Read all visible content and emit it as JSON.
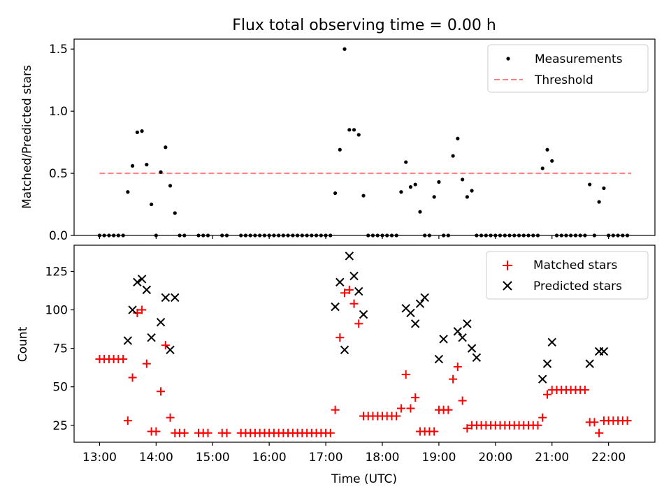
{
  "figure": {
    "title": "Flux total observing time = 0.00 h"
  },
  "chart_data": [
    {
      "type": "scatter",
      "name": "top",
      "ylabel": "Matched/Predicted stars",
      "xlabel": "",
      "xlim": [
        12.55,
        22.82
      ],
      "ylim": [
        0,
        1.58
      ],
      "yticks": [
        0.0,
        0.5,
        1.0,
        1.5
      ],
      "ytick_labels": [
        "0.0",
        "0.5",
        "1.0",
        "1.5"
      ],
      "grid": false,
      "legend_position": "upper right",
      "legend": [
        {
          "label": "Measurements",
          "marker": "dot",
          "color": "#000000"
        },
        {
          "label": "Threshold",
          "marker": "dashed-line",
          "color": "#ff7f7f"
        }
      ],
      "threshold": {
        "value": 0.5,
        "x_start": 13.0,
        "x_end": 22.4,
        "color": "#ff7f7f"
      },
      "series": [
        {
          "name": "Measurements",
          "color": "#000000",
          "x": [
            13.0,
            13.083,
            13.167,
            13.25,
            13.333,
            13.417,
            13.5,
            13.583,
            13.667,
            13.75,
            13.833,
            13.917,
            14.0,
            14.083,
            14.167,
            14.25,
            14.333,
            14.417,
            14.5,
            14.75,
            14.833,
            14.917,
            15.167,
            15.25,
            15.5,
            15.583,
            15.667,
            15.75,
            15.833,
            15.917,
            16.0,
            16.083,
            16.167,
            16.25,
            16.333,
            16.417,
            16.5,
            16.583,
            16.667,
            16.75,
            16.833,
            16.917,
            17.0,
            17.083,
            17.167,
            17.25,
            17.333,
            17.417,
            17.5,
            17.583,
            17.667,
            17.75,
            17.833,
            17.917,
            18.0,
            18.083,
            18.167,
            18.25,
            18.333,
            18.417,
            18.5,
            18.583,
            18.667,
            18.75,
            18.833,
            18.917,
            19.0,
            19.083,
            19.167,
            19.25,
            19.333,
            19.417,
            19.5,
            19.583,
            19.667,
            19.75,
            19.833,
            19.917,
            20.0,
            20.083,
            20.167,
            20.25,
            20.333,
            20.417,
            20.5,
            20.583,
            20.667,
            20.75,
            20.833,
            20.917,
            21.0,
            21.083,
            21.167,
            21.25,
            21.333,
            21.417,
            21.5,
            21.583,
            21.667,
            21.75,
            21.833,
            21.917,
            22.0,
            22.083,
            22.167,
            22.25,
            22.333
          ],
          "y": [
            0.0,
            0.0,
            0.0,
            0.0,
            0.0,
            0.0,
            0.35,
            0.56,
            0.83,
            0.84,
            0.57,
            0.25,
            0.0,
            0.51,
            0.71,
            0.4,
            0.18,
            0.0,
            0.0,
            0.0,
            0.0,
            0.0,
            0.0,
            0.0,
            0.0,
            0.0,
            0.0,
            0.0,
            0.0,
            0.0,
            0.0,
            0.0,
            0.0,
            0.0,
            0.0,
            0.0,
            0.0,
            0.0,
            0.0,
            0.0,
            0.0,
            0.0,
            0.0,
            0.0,
            0.34,
            0.69,
            1.5,
            0.85,
            0.85,
            0.81,
            0.32,
            0.0,
            0.0,
            0.0,
            0.0,
            0.0,
            0.0,
            0.0,
            0.35,
            0.59,
            0.39,
            0.41,
            0.19,
            0.0,
            0.0,
            0.31,
            0.43,
            0.0,
            0.0,
            0.64,
            0.78,
            0.45,
            0.31,
            0.36,
            0.0,
            0.0,
            0.0,
            0.0,
            0.0,
            0.0,
            0.0,
            0.0,
            0.0,
            0.0,
            0.0,
            0.0,
            0.0,
            0.0,
            0.54,
            0.69,
            0.6,
            0.0,
            0.0,
            0.0,
            0.0,
            0.0,
            0.0,
            0.0,
            0.41,
            0.0,
            0.27,
            0.38,
            0.0,
            0.0,
            0.0,
            0.0,
            0.0
          ]
        }
      ]
    },
    {
      "type": "scatter",
      "name": "bottom",
      "ylabel": "Count",
      "xlabel": "Time (UTC)",
      "xlim": [
        12.55,
        22.82
      ],
      "ylim": [
        14,
        142
      ],
      "yticks": [
        25,
        50,
        75,
        100,
        125
      ],
      "ytick_labels": [
        "25",
        "50",
        "75",
        "100",
        "125"
      ],
      "xticks": [
        13,
        14,
        15,
        16,
        17,
        18,
        19,
        20,
        21,
        22
      ],
      "xtick_labels": [
        "13:00",
        "14:00",
        "15:00",
        "16:00",
        "17:00",
        "18:00",
        "19:00",
        "20:00",
        "21:00",
        "22:00"
      ],
      "grid": false,
      "legend_position": "upper right",
      "legend": [
        {
          "label": "Matched stars",
          "marker": "plus",
          "color": "#ff0000"
        },
        {
          "label": "Predicted stars",
          "marker": "cross",
          "color": "#000000"
        }
      ],
      "series": [
        {
          "name": "Matched stars",
          "color": "#ff0000",
          "marker": "plus",
          "x": [
            13.0,
            13.083,
            13.167,
            13.25,
            13.333,
            13.417,
            13.5,
            13.583,
            13.667,
            13.75,
            13.833,
            13.917,
            14.0,
            14.083,
            14.167,
            14.25,
            14.333,
            14.417,
            14.5,
            14.75,
            14.833,
            14.917,
            15.167,
            15.25,
            15.5,
            15.583,
            15.667,
            15.75,
            15.833,
            15.917,
            16.0,
            16.083,
            16.167,
            16.25,
            16.333,
            16.417,
            16.5,
            16.583,
            16.667,
            16.75,
            16.833,
            16.917,
            17.0,
            17.083,
            17.167,
            17.25,
            17.333,
            17.417,
            17.5,
            17.583,
            17.667,
            17.75,
            17.833,
            17.917,
            18.0,
            18.083,
            18.167,
            18.25,
            18.333,
            18.417,
            18.5,
            18.583,
            18.667,
            18.75,
            18.833,
            18.917,
            19.0,
            19.083,
            19.167,
            19.25,
            19.333,
            19.417,
            19.5,
            19.583,
            19.667,
            19.75,
            19.833,
            19.917,
            20.0,
            20.083,
            20.167,
            20.25,
            20.333,
            20.417,
            20.5,
            20.583,
            20.667,
            20.75,
            20.833,
            20.917,
            21.0,
            21.083,
            21.167,
            21.25,
            21.333,
            21.417,
            21.5,
            21.583,
            21.667,
            21.75,
            21.833,
            21.917,
            22.0,
            22.083,
            22.167,
            22.25,
            22.333
          ],
          "y": [
            68,
            68,
            68,
            68,
            68,
            68,
            28,
            56,
            98,
            100,
            65,
            21,
            21,
            47,
            77,
            30,
            20,
            20,
            20,
            20,
            20,
            20,
            20,
            20,
            20,
            20,
            20,
            20,
            20,
            20,
            20,
            20,
            20,
            20,
            20,
            20,
            20,
            20,
            20,
            20,
            20,
            20,
            20,
            20,
            35,
            82,
            111,
            113,
            104,
            91,
            31,
            31,
            31,
            31,
            31,
            31,
            31,
            31,
            36,
            58,
            36,
            43,
            21,
            21,
            21,
            21,
            35,
            35,
            35,
            55,
            63,
            41,
            23,
            25,
            25,
            25,
            25,
            25,
            25,
            25,
            25,
            25,
            25,
            25,
            25,
            25,
            25,
            25,
            30,
            45,
            48,
            48,
            48,
            48,
            48,
            48,
            48,
            48,
            27,
            27,
            20,
            28,
            28,
            28,
            28,
            28,
            28
          ]
        },
        {
          "name": "Predicted stars",
          "color": "#000000",
          "marker": "cross",
          "x": [
            13.5,
            13.583,
            13.667,
            13.75,
            13.833,
            13.917,
            14.083,
            14.167,
            14.25,
            14.333,
            17.167,
            17.25,
            17.333,
            17.417,
            17.5,
            17.583,
            17.667,
            18.417,
            18.5,
            18.583,
            18.667,
            18.75,
            19.0,
            19.083,
            19.333,
            19.417,
            19.5,
            19.583,
            19.667,
            20.833,
            20.917,
            21.0,
            21.667,
            21.833,
            21.917
          ],
          "y": [
            80,
            100,
            118,
            120,
            113,
            82,
            92,
            108,
            74,
            108,
            102,
            118,
            74,
            135,
            122,
            112,
            97,
            101,
            98,
            91,
            104,
            108,
            68,
            81,
            86,
            82,
            91,
            75,
            69,
            55,
            65,
            79,
            65,
            73,
            73
          ]
        }
      ]
    }
  ]
}
